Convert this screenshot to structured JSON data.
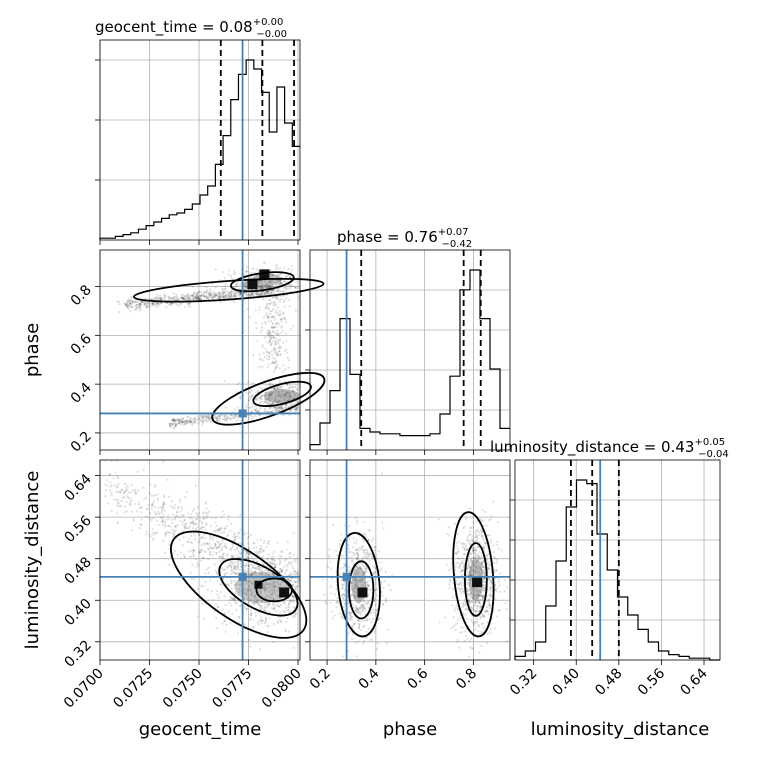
{
  "chart_data": {
    "type": "corner",
    "parameters": [
      "geocent_time",
      "phase",
      "luminosity_distance"
    ],
    "axis_labels": {
      "geocent_time": "geocent_time",
      "phase": "phase",
      "luminosity_distance": "luminosity_distance"
    },
    "ranges": {
      "geocent_time": [
        0.07,
        0.0801
      ],
      "phase": [
        0.13,
        0.95
      ],
      "luminosity_distance": [
        0.285,
        0.67
      ]
    },
    "ticks": {
      "geocent_time": [
        "0.0700",
        "0.0725",
        "0.0750",
        "0.0775",
        "0.0800"
      ],
      "phase_x": [
        "0.2",
        "0.4",
        "0.6",
        "0.8"
      ],
      "phase_y": [
        "0.2",
        "0.4",
        "0.6",
        "0.8"
      ],
      "luminosity_distance": [
        "0.32",
        "0.40",
        "0.48",
        "0.56",
        "0.64"
      ]
    },
    "truths": {
      "geocent_time": 0.0772,
      "phase": 0.28,
      "luminosity_distance": 0.445
    },
    "quantiles": {
      "geocent_time": [
        0.0761,
        0.0782,
        0.0798
      ],
      "phase": [
        0.34,
        0.76,
        0.83
      ],
      "luminosity_distance": [
        0.39,
        0.43,
        0.48
      ]
    },
    "titles": {
      "geocent_time": {
        "text": "geocent_time = 0.08",
        "sup": "+0.00",
        "sub": "−0.00"
      },
      "phase": {
        "text": "phase = 0.76",
        "sup": "+0.07",
        "sub": "−0.42"
      },
      "luminosity_distance": {
        "text": "luminosity_distance = 0.43",
        "sup": "+0.05",
        "sub": "−0.04"
      }
    },
    "histograms": {
      "geocent_time": [
        0.01,
        0.01,
        0.02,
        0.03,
        0.04,
        0.06,
        0.08,
        0.1,
        0.12,
        0.14,
        0.15,
        0.17,
        0.2,
        0.25,
        0.3,
        0.42,
        0.58,
        0.78,
        0.92,
        1.0,
        0.95,
        0.82,
        0.6,
        0.85,
        0.65,
        0.52
      ],
      "phase": [
        0.03,
        0.15,
        0.33,
        0.73,
        0.42,
        0.12,
        0.1,
        0.09,
        0.09,
        0.08,
        0.08,
        0.08,
        0.09,
        0.2,
        0.41,
        0.89,
        1.0,
        0.73,
        0.45,
        0.12
      ],
      "luminosity_distance": [
        0.02,
        0.05,
        0.1,
        0.3,
        0.55,
        0.85,
        1.0,
        0.98,
        0.7,
        0.5,
        0.35,
        0.25,
        0.17,
        0.1,
        0.05,
        0.03,
        0.02,
        0.01,
        0.01,
        0.0
      ]
    }
  }
}
